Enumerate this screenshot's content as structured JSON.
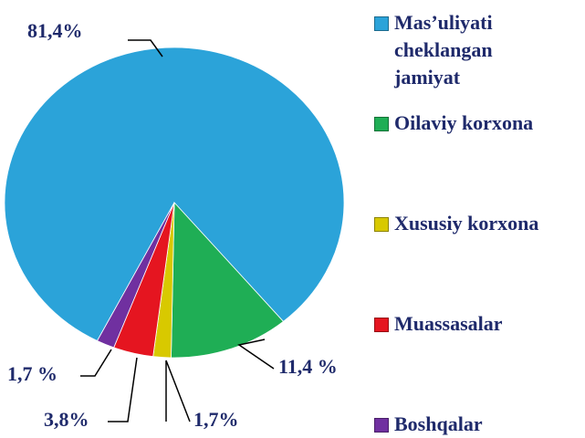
{
  "chart_data": {
    "type": "pie",
    "labels": [
      "Mas’uliyati cheklangan jamiyat",
      "Oilaviy korxona",
      "Xususiy korxona",
      "Muassasalar",
      "Boshqalar"
    ],
    "values": [
      81.4,
      11.4,
      1.7,
      3.8,
      1.7
    ],
    "value_labels": [
      "81,4%",
      "11,4 %",
      "1,7%",
      "3,8%",
      "1,7 %"
    ],
    "colors": [
      "#2ba3d9",
      "#1fae55",
      "#d8c900",
      "#e51520",
      "#7030a0"
    ]
  }
}
